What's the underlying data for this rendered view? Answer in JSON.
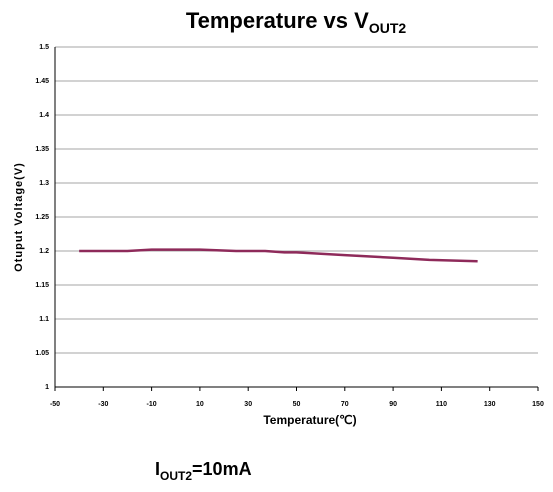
{
  "chart_data": {
    "type": "line",
    "title": [
      "Temperature vs V",
      "OUT2"
    ],
    "x_label": "Temperature(℃)",
    "y_label": "Otuput Voltage(V)",
    "annotation": [
      "I",
      "OUT2",
      "=10mA"
    ],
    "series": [
      {
        "name": "VOUT2",
        "color": "#8e2a5a",
        "x": [
          -40,
          -20,
          -10,
          10,
          25,
          37,
          45,
          50,
          70,
          90,
          105,
          125
        ],
        "values": [
          1.2,
          1.2,
          1.202,
          1.202,
          1.2,
          1.2,
          1.198,
          1.198,
          1.194,
          1.19,
          1.187,
          1.185
        ]
      }
    ],
    "xlim": [
      -50,
      150
    ],
    "xticks": [
      -50,
      -30,
      -10,
      10,
      30,
      50,
      70,
      90,
      110,
      130,
      150
    ],
    "ylim": [
      1,
      1.5
    ],
    "yticks": [
      1,
      1.05,
      1.1,
      1.15,
      1.2,
      1.25,
      1.3,
      1.35,
      1.4,
      1.45,
      1.5
    ],
    "grid": true
  }
}
